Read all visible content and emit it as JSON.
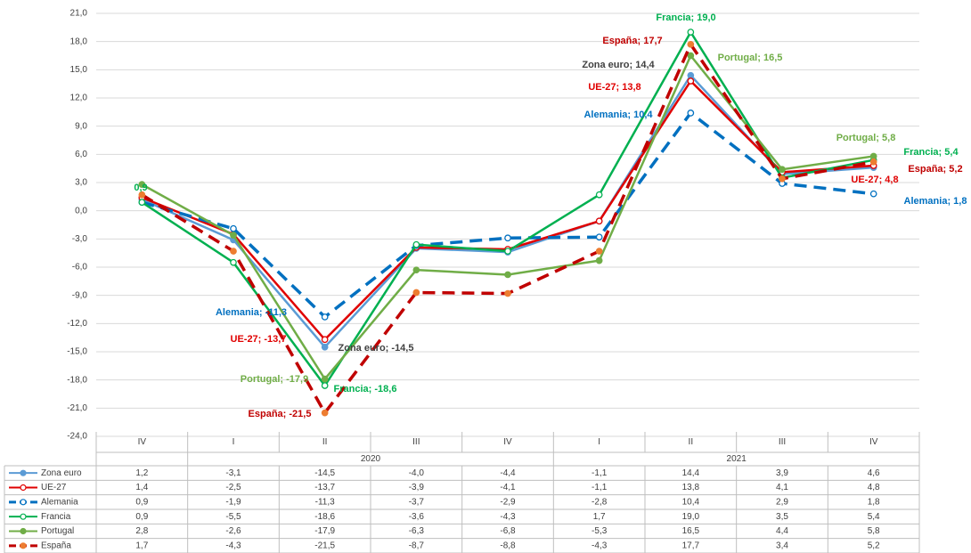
{
  "chart_data": {
    "type": "line",
    "categories": [
      "IV",
      "I",
      "II",
      "III",
      "IV",
      "I",
      "II",
      "III",
      "IV"
    ],
    "years": [
      "2020",
      "2021"
    ],
    "ylim": [
      -24,
      21
    ],
    "yticks": [
      {
        "value": -24,
        "label": "-24,0"
      },
      {
        "value": -21,
        "label": "-21,0"
      },
      {
        "value": -18,
        "label": "-18,0"
      },
      {
        "value": -15,
        "label": "-15,0"
      },
      {
        "value": -12,
        "label": "-12,0"
      },
      {
        "value": -9,
        "label": "-9,0"
      },
      {
        "value": -6,
        "label": "-6,0"
      },
      {
        "value": -3,
        "label": "-3,0"
      },
      {
        "value": 0,
        "label": "0,0"
      },
      {
        "value": 3,
        "label": "3,0"
      },
      {
        "value": 6,
        "label": "6,0"
      },
      {
        "value": 9,
        "label": "9,0"
      },
      {
        "value": 12,
        "label": "12,0"
      },
      {
        "value": 15,
        "label": "15,0"
      },
      {
        "value": 18,
        "label": "18,0"
      },
      {
        "value": 21,
        "label": "21,0"
      }
    ],
    "grid": true,
    "series": [
      {
        "name": "Zona euro",
        "color": "#5b9bd5",
        "dashed": false,
        "marker_fill": "#5b9bd5",
        "values": [
          1.2,
          -3.1,
          -14.5,
          -4.0,
          -4.4,
          -1.1,
          14.4,
          3.9,
          4.6
        ],
        "value_labels": [
          "1,2",
          "-3,1",
          "-14,5",
          "-4,0",
          "-4,4",
          "-1,1",
          "14,4",
          "3,9",
          "4,6"
        ]
      },
      {
        "name": "UE-27",
        "color": "#e00000",
        "dashed": false,
        "marker_fill": "#ffffff",
        "values": [
          1.4,
          -2.5,
          -13.7,
          -3.9,
          -4.1,
          -1.1,
          13.8,
          4.1,
          4.8
        ],
        "value_labels": [
          "1,4",
          "-2,5",
          "-13,7",
          "-3,9",
          "-4,1",
          "-1,1",
          "13,8",
          "4,1",
          "4,8"
        ]
      },
      {
        "name": "Alemania",
        "color": "#0070c0",
        "dashed": true,
        "marker_fill": "#ffffff",
        "values": [
          0.9,
          -1.9,
          -11.3,
          -3.7,
          -2.9,
          -2.8,
          10.4,
          2.9,
          1.8
        ],
        "value_labels": [
          "0,9",
          "-1,9",
          "-11,3",
          "-3,7",
          "-2,9",
          "-2,8",
          "10,4",
          "2,9",
          "1,8"
        ]
      },
      {
        "name": "Francia",
        "color": "#00b050",
        "dashed": false,
        "marker_fill": "#ffffff",
        "values": [
          0.9,
          -5.5,
          -18.6,
          -3.6,
          -4.3,
          1.7,
          19.0,
          3.5,
          5.4
        ],
        "value_labels": [
          "0,9",
          "-5,5",
          "-18,6",
          "-3,6",
          "-4,3",
          "1,7",
          "19,0",
          "3,5",
          "5,4"
        ]
      },
      {
        "name": "Portugal",
        "color": "#70ad47",
        "dashed": false,
        "marker_fill": "#70ad47",
        "values": [
          2.8,
          -2.6,
          -17.9,
          -6.3,
          -6.8,
          -5.3,
          16.5,
          4.4,
          5.8
        ],
        "value_labels": [
          "2,8",
          "-2,6",
          "-17,9",
          "-6,3",
          "-6,8",
          "-5,3",
          "16,5",
          "4,4",
          "5,8"
        ]
      },
      {
        "name": "España",
        "color": "#c00000",
        "dashed": true,
        "marker_fill": "#ed7d31",
        "values": [
          1.7,
          -4.3,
          -21.5,
          -8.7,
          -8.8,
          -4.3,
          17.7,
          3.4,
          5.2
        ],
        "value_labels": [
          "1,7",
          "-4,3",
          "-21,5",
          "-8,7",
          "-8,8",
          "-4,3",
          "17,7",
          "3,4",
          "5,2"
        ]
      }
    ],
    "annotations": [
      {
        "text": "Francia; 19,0",
        "color": "#00b050"
      },
      {
        "text": "España; 17,7",
        "color": "#c00000"
      },
      {
        "text": "Portugal; 16,5",
        "color": "#70ad47"
      },
      {
        "text": "Zona euro; 14,4",
        "color": "#404040"
      },
      {
        "text": "UE-27; 13,8",
        "color": "#e00000"
      },
      {
        "text": "Alemania; 10,4",
        "color": "#0070c0"
      },
      {
        "text": "Portugal; 5,8",
        "color": "#70ad47"
      },
      {
        "text": "Francia; 5,4",
        "color": "#00b050"
      },
      {
        "text": "España; 5,2",
        "color": "#c00000"
      },
      {
        "text": "UE-27; 4,8",
        "color": "#e00000"
      },
      {
        "text": "Alemania; 1,8",
        "color": "#0070c0"
      },
      {
        "text": "Alemania; -11,3",
        "color": "#0070c0"
      },
      {
        "text": "UE-27; -13,7",
        "color": "#e00000"
      },
      {
        "text": "Zona euro; -14,5",
        "color": "#404040"
      },
      {
        "text": "Portugal; -17,9",
        "color": "#70ad47"
      },
      {
        "text": "Francia; -18,6",
        "color": "#00b050"
      },
      {
        "text": "España; -21,5",
        "color": "#c00000"
      },
      {
        "text": "0,9",
        "color": "#00b050"
      }
    ]
  }
}
